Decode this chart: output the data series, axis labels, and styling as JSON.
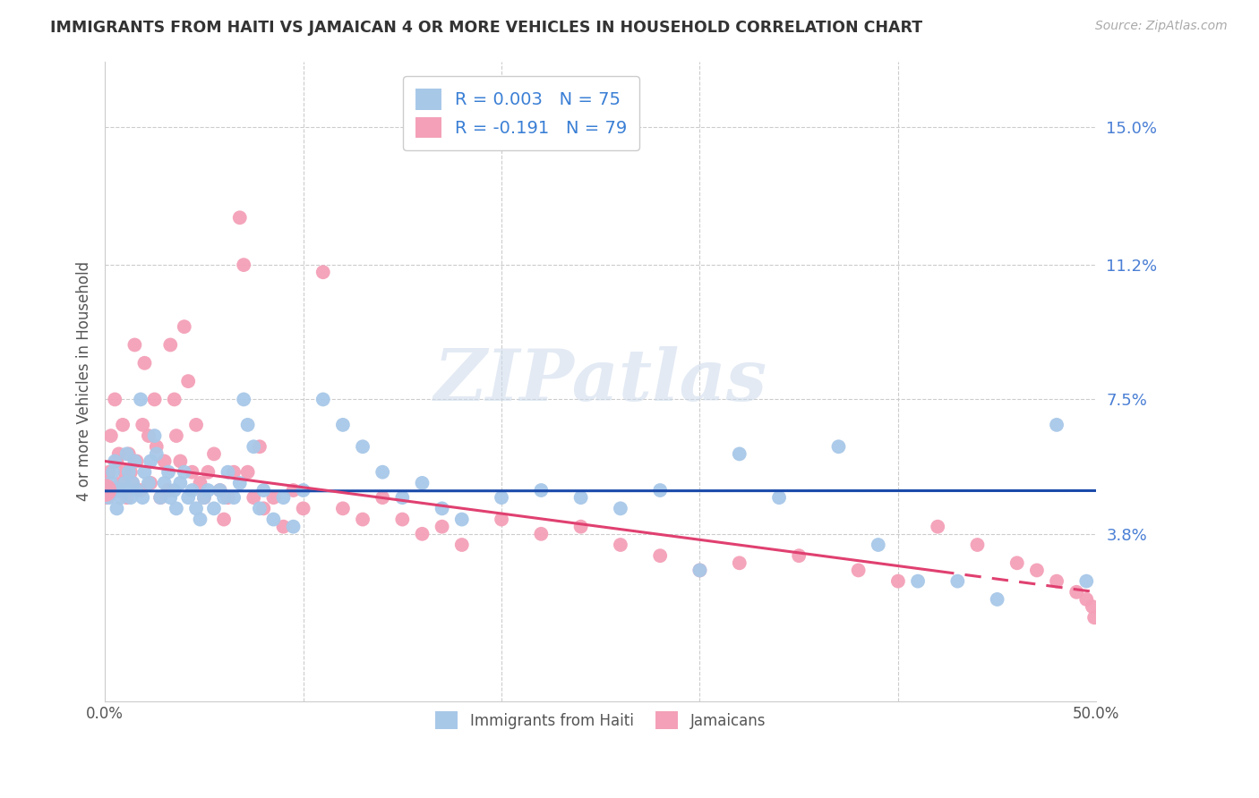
{
  "title": "IMMIGRANTS FROM HAITI VS JAMAICAN 4 OR MORE VEHICLES IN HOUSEHOLD CORRELATION CHART",
  "source": "Source: ZipAtlas.com",
  "ylabel": "4 or more Vehicles in Household",
  "ytick_labels": [
    "15.0%",
    "11.2%",
    "7.5%",
    "3.8%"
  ],
  "ytick_values": [
    0.15,
    0.112,
    0.075,
    0.038
  ],
  "xmin": 0.0,
  "xmax": 0.5,
  "ymin": -0.008,
  "ymax": 0.168,
  "haiti_color": "#a8c8e8",
  "jamaica_color": "#f4a0b8",
  "haiti_line_color": "#1a4aaa",
  "jamaica_line_color": "#e04070",
  "haiti_R": 0.003,
  "haiti_N": 75,
  "jamaica_R": -0.191,
  "jamaica_N": 79,
  "legend_label_haiti": "Immigrants from Haiti",
  "legend_label_jamaica": "Jamaicans",
  "watermark": "ZIPatlas",
  "background_color": "#ffffff",
  "grid_color": "#cccccc",
  "haiti_scatter_x": [
    0.001,
    0.002,
    0.003,
    0.004,
    0.005,
    0.006,
    0.007,
    0.008,
    0.009,
    0.01,
    0.011,
    0.012,
    0.013,
    0.014,
    0.015,
    0.016,
    0.018,
    0.019,
    0.02,
    0.022,
    0.023,
    0.025,
    0.026,
    0.028,
    0.03,
    0.032,
    0.033,
    0.035,
    0.036,
    0.038,
    0.04,
    0.042,
    0.044,
    0.046,
    0.048,
    0.05,
    0.052,
    0.055,
    0.058,
    0.06,
    0.062,
    0.065,
    0.068,
    0.07,
    0.072,
    0.075,
    0.078,
    0.08,
    0.085,
    0.09,
    0.095,
    0.1,
    0.11,
    0.12,
    0.13,
    0.14,
    0.15,
    0.16,
    0.17,
    0.18,
    0.2,
    0.22,
    0.24,
    0.26,
    0.28,
    0.3,
    0.32,
    0.34,
    0.37,
    0.39,
    0.41,
    0.43,
    0.45,
    0.48,
    0.495
  ],
  "haiti_scatter_y": [
    0.05,
    0.048,
    0.052,
    0.055,
    0.058,
    0.045,
    0.05,
    0.048,
    0.05,
    0.052,
    0.06,
    0.055,
    0.048,
    0.052,
    0.058,
    0.05,
    0.075,
    0.048,
    0.055,
    0.052,
    0.058,
    0.065,
    0.06,
    0.048,
    0.052,
    0.055,
    0.048,
    0.05,
    0.045,
    0.052,
    0.055,
    0.048,
    0.05,
    0.045,
    0.042,
    0.048,
    0.05,
    0.045,
    0.05,
    0.048,
    0.055,
    0.048,
    0.052,
    0.075,
    0.068,
    0.062,
    0.045,
    0.05,
    0.042,
    0.048,
    0.04,
    0.05,
    0.075,
    0.068,
    0.062,
    0.055,
    0.048,
    0.052,
    0.045,
    0.042,
    0.048,
    0.05,
    0.048,
    0.045,
    0.05,
    0.028,
    0.06,
    0.048,
    0.062,
    0.035,
    0.025,
    0.025,
    0.02,
    0.068,
    0.025
  ],
  "jamaica_scatter_x": [
    0.001,
    0.002,
    0.003,
    0.004,
    0.005,
    0.006,
    0.007,
    0.008,
    0.009,
    0.01,
    0.011,
    0.012,
    0.013,
    0.014,
    0.015,
    0.016,
    0.018,
    0.019,
    0.02,
    0.022,
    0.023,
    0.025,
    0.026,
    0.028,
    0.03,
    0.032,
    0.033,
    0.035,
    0.036,
    0.038,
    0.04,
    0.042,
    0.044,
    0.046,
    0.048,
    0.05,
    0.052,
    0.055,
    0.058,
    0.06,
    0.062,
    0.065,
    0.068,
    0.07,
    0.072,
    0.075,
    0.078,
    0.08,
    0.085,
    0.09,
    0.095,
    0.1,
    0.11,
    0.12,
    0.13,
    0.14,
    0.15,
    0.16,
    0.17,
    0.18,
    0.2,
    0.22,
    0.24,
    0.26,
    0.28,
    0.3,
    0.32,
    0.35,
    0.38,
    0.4,
    0.42,
    0.44,
    0.46,
    0.47,
    0.48,
    0.49,
    0.495,
    0.498,
    0.499
  ],
  "jamaica_scatter_y": [
    0.048,
    0.055,
    0.065,
    0.05,
    0.075,
    0.058,
    0.06,
    0.052,
    0.068,
    0.055,
    0.048,
    0.06,
    0.055,
    0.052,
    0.09,
    0.058,
    0.05,
    0.068,
    0.085,
    0.065,
    0.052,
    0.075,
    0.062,
    0.048,
    0.058,
    0.05,
    0.09,
    0.075,
    0.065,
    0.058,
    0.095,
    0.08,
    0.055,
    0.068,
    0.052,
    0.048,
    0.055,
    0.06,
    0.05,
    0.042,
    0.048,
    0.055,
    0.125,
    0.112,
    0.055,
    0.048,
    0.062,
    0.045,
    0.048,
    0.04,
    0.05,
    0.045,
    0.11,
    0.045,
    0.042,
    0.048,
    0.042,
    0.038,
    0.04,
    0.035,
    0.042,
    0.038,
    0.04,
    0.035,
    0.032,
    0.028,
    0.03,
    0.032,
    0.028,
    0.025,
    0.04,
    0.035,
    0.03,
    0.028,
    0.025,
    0.022,
    0.02,
    0.018,
    0.015
  ],
  "haiti_line_intercept": 0.0498,
  "haiti_line_slope": 0.0002,
  "jamaica_line_intercept": 0.058,
  "jamaica_line_slope": -0.072
}
